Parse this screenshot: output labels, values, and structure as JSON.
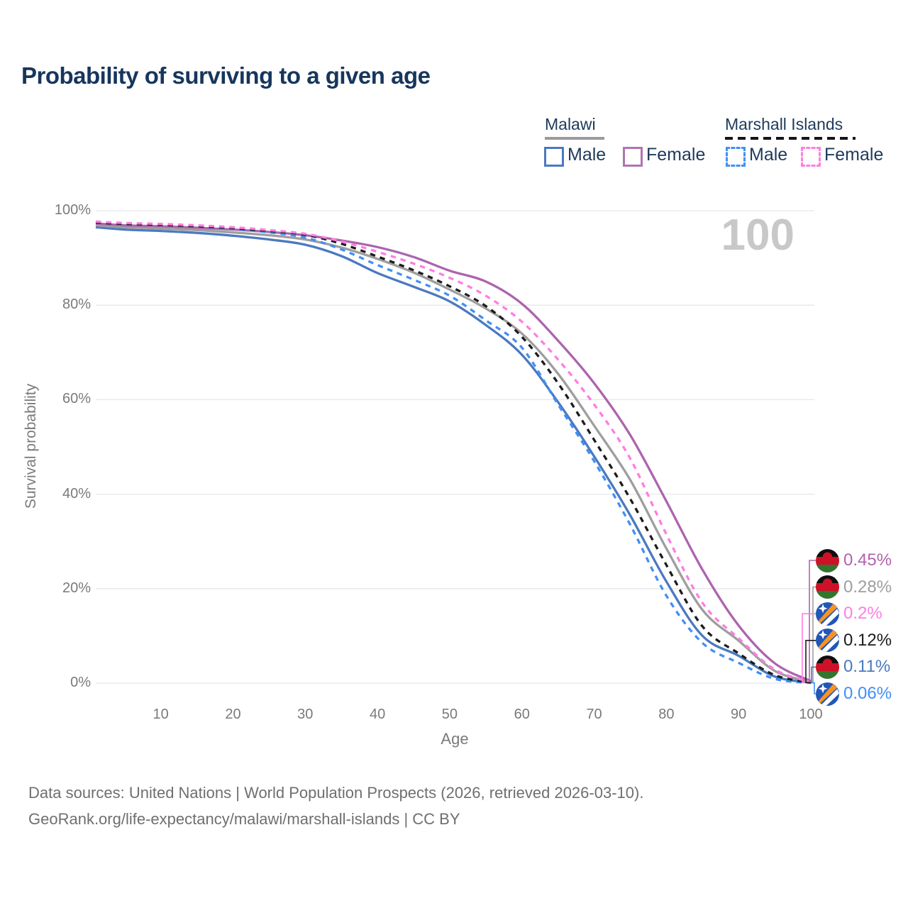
{
  "title": "Probability of surviving to a given age",
  "watermark": "100",
  "legend": {
    "groups": [
      {
        "name": "Malawi",
        "line_style": "solid",
        "underline_color": "#9a9a9a",
        "items": [
          {
            "label": "Male",
            "color": "#4b79c0",
            "dashed": false
          },
          {
            "label": "Female",
            "color": "#b273b2",
            "dashed": false
          }
        ]
      },
      {
        "name": "Marshall Islands",
        "line_style": "dashed",
        "underline_color": "#141414",
        "items": [
          {
            "label": "Male",
            "color": "#418ff5",
            "dashed": true
          },
          {
            "label": "Female",
            "color": "#ff7de2",
            "dashed": true
          }
        ]
      }
    ]
  },
  "axes": {
    "x_label": "Age",
    "y_label": "Survival probability",
    "x_ticks": [
      10,
      20,
      30,
      40,
      50,
      60,
      70,
      80,
      90,
      100
    ],
    "y_ticks": [
      "0%",
      "20%",
      "40%",
      "60%",
      "80%",
      "100%"
    ]
  },
  "chart_data": {
    "type": "line",
    "title": "Probability of surviving to a given age",
    "xlabel": "Age",
    "ylabel": "Survival probability",
    "xlim": [
      1,
      100
    ],
    "ylim": [
      0,
      100
    ],
    "grid": "horizontal",
    "legend_position": "top-right",
    "x": [
      1,
      5,
      10,
      15,
      20,
      25,
      30,
      35,
      40,
      45,
      50,
      55,
      60,
      65,
      70,
      75,
      80,
      85,
      90,
      95,
      100
    ],
    "series": [
      {
        "name": "Malawi Male",
        "country": "Malawi",
        "group_label": "Male",
        "color": "#4b79c0",
        "dash": false,
        "values": [
          96.5,
          96.0,
          95.7,
          95.3,
          94.7,
          93.9,
          92.8,
          90.4,
          86.8,
          83.9,
          80.8,
          75.8,
          69.5,
          59.5,
          48.0,
          35.5,
          21.5,
          10.0,
          5.8,
          1.4,
          0.11
        ]
      },
      {
        "name": "Malawi",
        "country": "Malawi",
        "group_label": "Malawi (total)",
        "color": "#9e9e9e",
        "dash": false,
        "values": [
          96.9,
          96.5,
          96.2,
          95.9,
          95.4,
          94.8,
          93.9,
          92.2,
          89.8,
          86.9,
          83.3,
          79.3,
          74.0,
          65.5,
          54.5,
          43.0,
          28.5,
          15.5,
          9.0,
          2.6,
          0.28
        ]
      },
      {
        "name": "Malawi Female",
        "country": "Malawi",
        "group_label": "Female",
        "color": "#ac64ae",
        "dash": false,
        "values": [
          97.3,
          96.9,
          96.7,
          96.4,
          96.0,
          95.5,
          94.8,
          93.7,
          92.3,
          90.2,
          87.3,
          85.0,
          80.3,
          72.5,
          63.5,
          52.5,
          38.5,
          24.0,
          12.2,
          4.2,
          0.45
        ]
      },
      {
        "name": "Marshall Islands Male",
        "country": "Marshall Islands",
        "group_label": "Male",
        "color": "#418ff5",
        "dash": true,
        "values": [
          97.6,
          97.3,
          97.1,
          96.7,
          96.2,
          95.4,
          94.3,
          91.8,
          88.5,
          85.4,
          82.0,
          76.8,
          71.0,
          59.0,
          47.0,
          33.5,
          18.5,
          8.5,
          4.3,
          0.9,
          0.06
        ]
      },
      {
        "name": "Marshall Islands",
        "country": "Marshall Islands",
        "group_label": "Marshall Islands (total)",
        "color": "#1c1c1c",
        "dash": true,
        "values": [
          97.5,
          97.2,
          97.0,
          96.7,
          96.3,
          95.7,
          94.9,
          93.0,
          90.3,
          87.4,
          84.0,
          79.8,
          73.3,
          63.5,
          51.5,
          39.0,
          25.0,
          12.0,
          6.3,
          1.7,
          0.12
        ]
      },
      {
        "name": "Marshall Islands Female",
        "country": "Marshall Islands",
        "group_label": "Female",
        "color": "#ff7de2",
        "dash": true,
        "values": [
          97.7,
          97.4,
          97.2,
          96.9,
          96.5,
          95.9,
          95.1,
          93.5,
          91.3,
          88.8,
          85.8,
          82.0,
          76.5,
          68.5,
          59.0,
          47.5,
          31.5,
          17.0,
          9.5,
          2.9,
          0.2
        ]
      }
    ],
    "end_labels": [
      {
        "text": "0.45%",
        "value": 0.45,
        "color": "#b163ae",
        "flag": "malawi",
        "series": 2
      },
      {
        "text": "0.28%",
        "value": 0.28,
        "color": "#9e9e9e",
        "flag": "malawi",
        "series": 1
      },
      {
        "text": "0.2%",
        "value": 0.2,
        "color": "#ff7de2",
        "flag": "marshall-islands",
        "series": 5
      },
      {
        "text": "0.12%",
        "value": 0.12,
        "color": "#1c1c1c",
        "flag": "marshall-islands",
        "series": 4
      },
      {
        "text": "0.11%",
        "value": 0.11,
        "color": "#4b79c0",
        "flag": "malawi",
        "series": 0
      },
      {
        "text": "0.06%",
        "value": 0.06,
        "color": "#418ff5",
        "flag": "marshall-islands",
        "series": 3
      }
    ],
    "annotations": {
      "watermark": "100"
    }
  },
  "footer": {
    "line1": "Data sources: United Nations | World Population Prospects (2026, retrieved 2026-03-10).",
    "line2": "GeoRank.org/life-expectancy/malawi/marshall-islands | CC BY"
  },
  "colors": {
    "title": "#17365d",
    "axis_text": "#7a7a7a",
    "gridline": "#e7e7e7",
    "watermark": "#c8c8c8",
    "footer_text": "#6f6f6f"
  }
}
